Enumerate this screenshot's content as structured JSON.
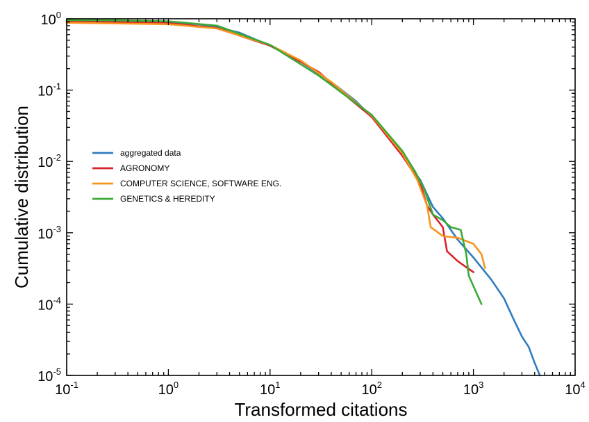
{
  "chart_data": {
    "type": "line",
    "xlabel": "Transformed citations",
    "ylabel": "Cumulative distribution",
    "x_scale": "log",
    "y_scale": "log",
    "xlim": [
      0.1,
      10000
    ],
    "ylim": [
      1e-05,
      1
    ],
    "x_ticks": [
      {
        "base": "10",
        "exp": "-1",
        "value": 0.1
      },
      {
        "base": "10",
        "exp": "0",
        "value": 1
      },
      {
        "base": "10",
        "exp": "1",
        "value": 10
      },
      {
        "base": "10",
        "exp": "2",
        "value": 100
      },
      {
        "base": "10",
        "exp": "3",
        "value": 1000
      },
      {
        "base": "10",
        "exp": "4",
        "value": 10000
      }
    ],
    "y_ticks": [
      {
        "base": "10",
        "exp": "0",
        "value": 1
      },
      {
        "base": "10",
        "exp": "-1",
        "value": 0.1
      },
      {
        "base": "10",
        "exp": "-2",
        "value": 0.01
      },
      {
        "base": "10",
        "exp": "-3",
        "value": 0.001
      },
      {
        "base": "10",
        "exp": "-4",
        "value": 0.0001
      },
      {
        "base": "10",
        "exp": "-5",
        "value": 1e-05
      }
    ],
    "grid": false,
    "legend_position": "center-left",
    "series": [
      {
        "name": "aggregated data",
        "color": "#2f7bbf",
        "points": [
          [
            0.1,
            0.95
          ],
          [
            0.3,
            0.93
          ],
          [
            1,
            0.9
          ],
          [
            2,
            0.84
          ],
          [
            3,
            0.76
          ],
          [
            5,
            0.64
          ],
          [
            10,
            0.42
          ],
          [
            20,
            0.25
          ],
          [
            40,
            0.13
          ],
          [
            70,
            0.07
          ],
          [
            100,
            0.042
          ],
          [
            150,
            0.022
          ],
          [
            200,
            0.012
          ],
          [
            300,
            0.0055
          ],
          [
            400,
            0.0023
          ],
          [
            500,
            0.0016
          ],
          [
            700,
            0.0008
          ],
          [
            1000,
            0.00045
          ],
          [
            1500,
            0.00022
          ],
          [
            2000,
            0.00012
          ],
          [
            2500,
            6e-05
          ],
          [
            3000,
            3.5e-05
          ],
          [
            3500,
            2.5e-05
          ],
          [
            4000,
            1.5e-05
          ],
          [
            4500,
            1e-05
          ]
        ]
      },
      {
        "name": "AGRONOMY",
        "color": "#d9232e",
        "points": [
          [
            0.1,
            0.92
          ],
          [
            0.3,
            0.9
          ],
          [
            1,
            0.87
          ],
          [
            3,
            0.74
          ],
          [
            10,
            0.42
          ],
          [
            20,
            0.25
          ],
          [
            30,
            0.18
          ],
          [
            50,
            0.095
          ],
          [
            100,
            0.042
          ],
          [
            200,
            0.012
          ],
          [
            300,
            0.005
          ],
          [
            350,
            0.0024
          ],
          [
            400,
            0.0018
          ],
          [
            500,
            0.0012
          ],
          [
            550,
            0.00055
          ],
          [
            700,
            0.0004
          ],
          [
            1000,
            0.00028
          ]
        ]
      },
      {
        "name": "COMPUTER SCIENCE, SOFTWARE ENG.",
        "color": "#f7941d",
        "points": [
          [
            0.1,
            0.88
          ],
          [
            0.3,
            0.86
          ],
          [
            1,
            0.84
          ],
          [
            3,
            0.73
          ],
          [
            10,
            0.43
          ],
          [
            20,
            0.26
          ],
          [
            40,
            0.13
          ],
          [
            100,
            0.044
          ],
          [
            200,
            0.013
          ],
          [
            280,
            0.0055
          ],
          [
            350,
            0.0024
          ],
          [
            380,
            0.0012
          ],
          [
            500,
            0.0009
          ],
          [
            700,
            0.00085
          ],
          [
            1000,
            0.0007
          ],
          [
            1200,
            0.0005
          ],
          [
            1300,
            0.00032
          ]
        ]
      },
      {
        "name": "GENETICS & HEREDITY",
        "color": "#3aaa35",
        "points": [
          [
            0.1,
            0.96
          ],
          [
            0.3,
            0.95
          ],
          [
            1,
            0.92
          ],
          [
            3,
            0.8
          ],
          [
            10,
            0.43
          ],
          [
            30,
            0.16
          ],
          [
            100,
            0.045
          ],
          [
            200,
            0.014
          ],
          [
            270,
            0.007
          ],
          [
            330,
            0.004
          ],
          [
            400,
            0.0018
          ],
          [
            500,
            0.0015
          ],
          [
            600,
            0.0012
          ],
          [
            750,
            0.0011
          ],
          [
            850,
            0.0005
          ],
          [
            900,
            0.00025
          ],
          [
            1200,
            0.0001
          ]
        ]
      }
    ]
  }
}
